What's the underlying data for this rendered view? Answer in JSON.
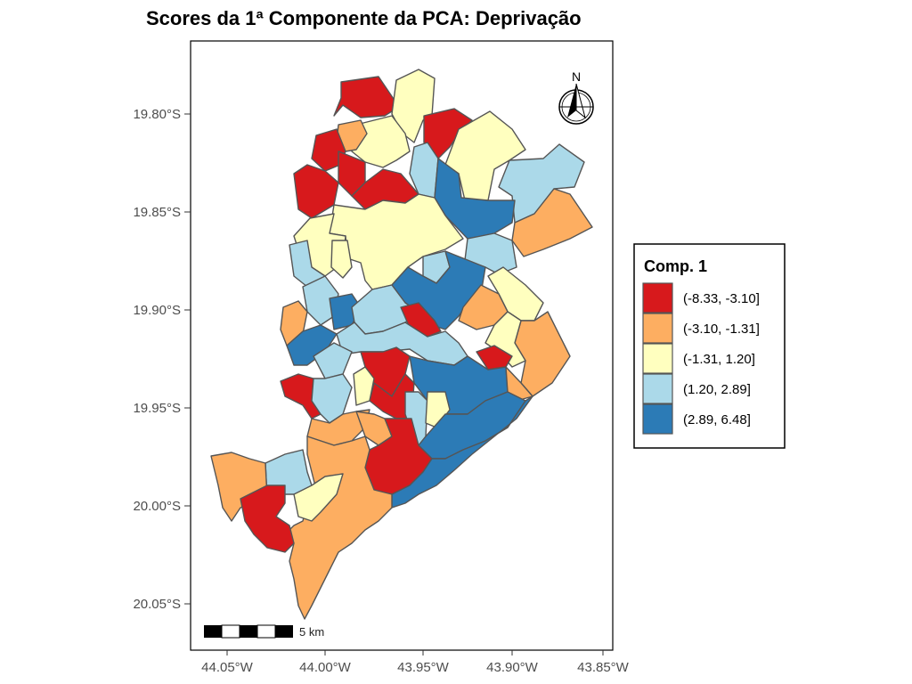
{
  "title": "Scores da 1ª Componente da PCA: Deprivação",
  "colors": {
    "c1": "#d7191c",
    "c2": "#fdae61",
    "c3": "#ffffbf",
    "c4": "#abd9e9",
    "c5": "#2c7bb6",
    "border": "#555555"
  },
  "y_ticks": [
    "19.80°S",
    "19.85°S",
    "19.90°S",
    "19.95°S",
    "20.00°S",
    "20.05°S"
  ],
  "x_ticks": [
    "44.05°W",
    "44.00°W",
    "43.95°W",
    "43.90°W",
    "43.85°W"
  ],
  "north_arrow": {
    "label": "N",
    "icon": "north-arrow-icon"
  },
  "scale_bar": {
    "label": "5 km"
  },
  "legend": {
    "title": "Comp. 1",
    "items": [
      {
        "label": "(-8.33, -3.10]",
        "color": "#d7191c"
      },
      {
        "label": "(-3.10, -1.31]",
        "color": "#fdae61"
      },
      {
        "label": "(-1.31, 1.20]",
        "color": "#ffffbf"
      },
      {
        "label": "(1.20, 2.89]",
        "color": "#abd9e9"
      },
      {
        "label": "(2.89, 6.48]",
        "color": "#2c7bb6"
      }
    ]
  }
}
